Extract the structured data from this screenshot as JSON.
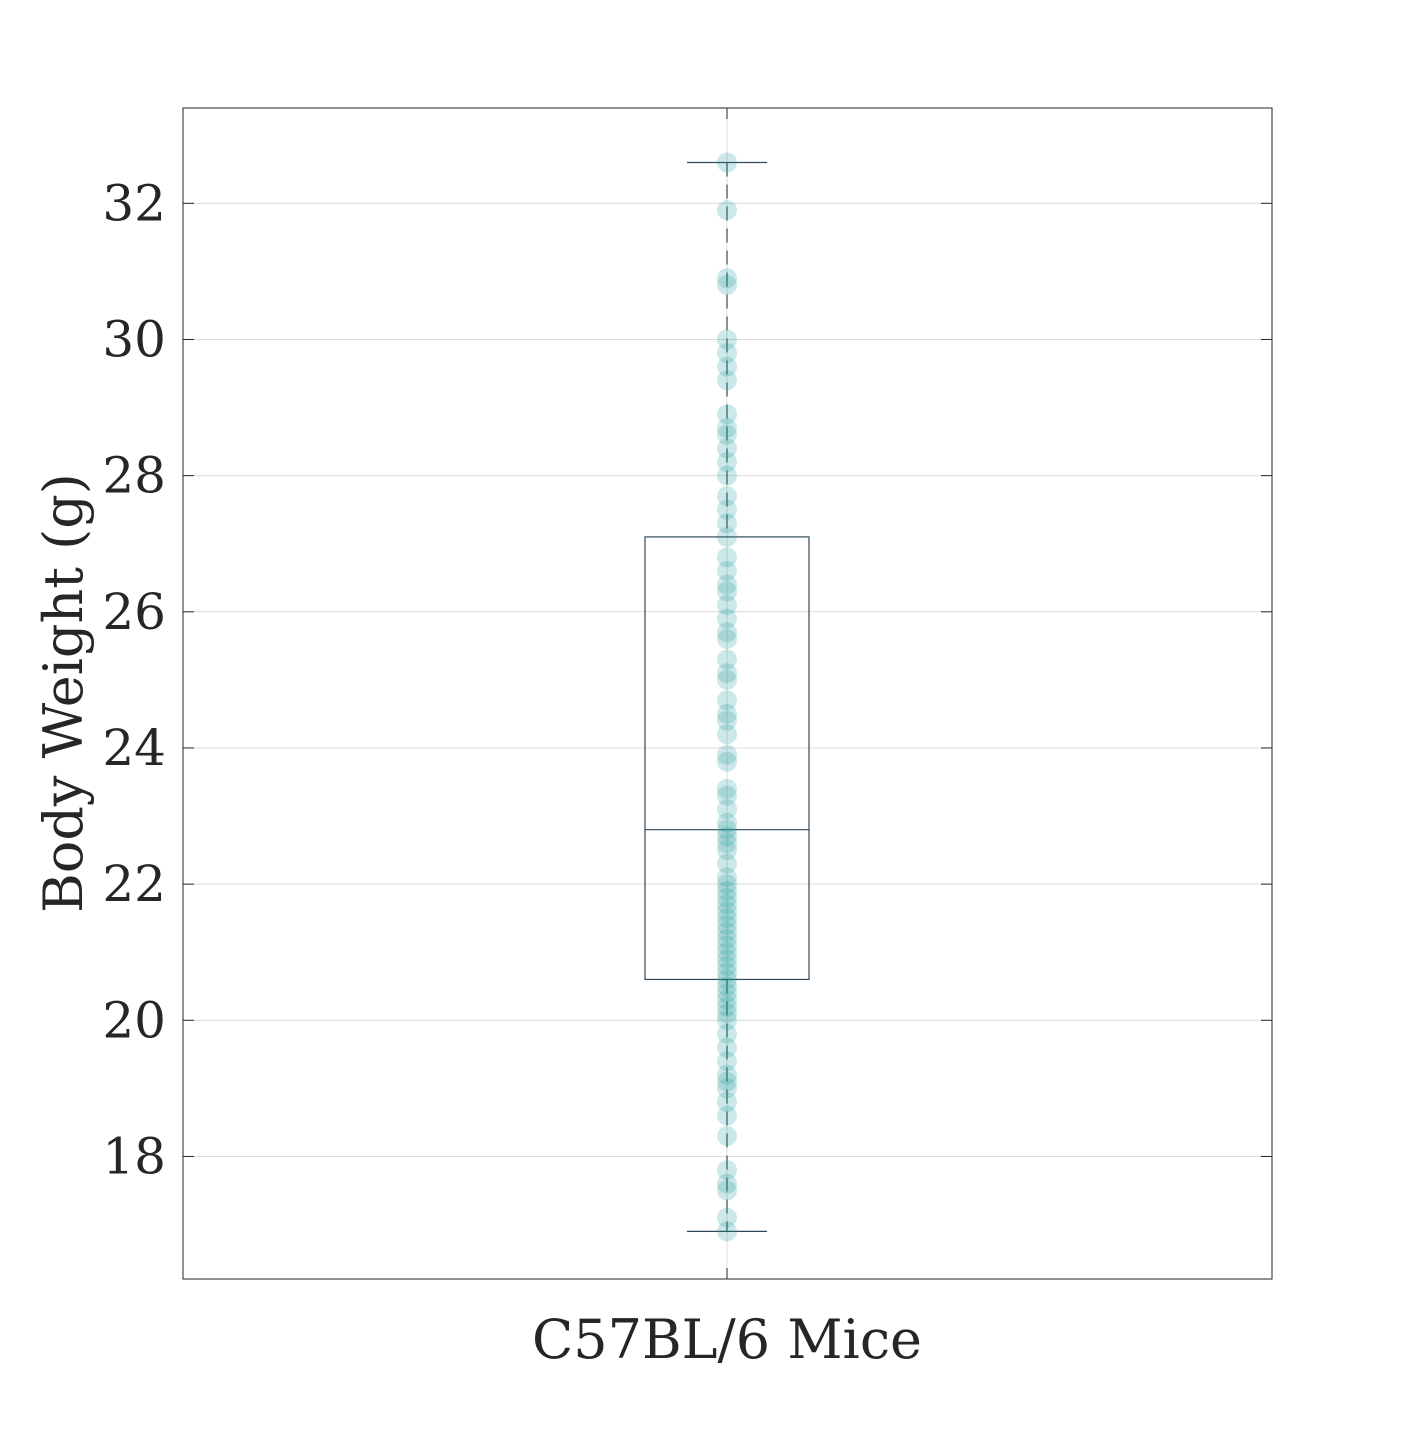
{
  "chart_data": {
    "type": "box",
    "categories": [
      "C57BL/6 Mice"
    ],
    "xlabel": "",
    "ylabel": "Body Weight (g)",
    "ylim": [
      16.2,
      33.4
    ],
    "yticks": [
      18,
      20,
      22,
      24,
      26,
      28,
      30,
      32
    ],
    "grid": true,
    "box": {
      "whisker_low": 16.9,
      "q1": 20.6,
      "median": 22.8,
      "q3": 27.1,
      "whisker_high": 32.6
    },
    "points": [
      16.9,
      17.1,
      17.5,
      17.6,
      17.8,
      18.3,
      18.6,
      18.8,
      19.0,
      19.1,
      19.2,
      19.4,
      19.6,
      19.8,
      20.0,
      20.1,
      20.2,
      20.3,
      20.4,
      20.5,
      20.6,
      20.7,
      20.8,
      20.9,
      21.0,
      21.1,
      21.2,
      21.3,
      21.4,
      21.5,
      21.6,
      21.7,
      21.8,
      21.9,
      22.0,
      22.1,
      22.3,
      22.5,
      22.6,
      22.7,
      22.8,
      22.9,
      23.1,
      23.3,
      23.4,
      23.8,
      23.9,
      24.2,
      24.4,
      24.5,
      24.7,
      25.0,
      25.1,
      25.3,
      25.6,
      25.7,
      25.9,
      26.1,
      26.3,
      26.4,
      26.6,
      26.8,
      27.1,
      27.3,
      27.5,
      27.7,
      28.0,
      28.2,
      28.4,
      28.6,
      28.7,
      28.9,
      29.4,
      29.6,
      29.8,
      30.0,
      30.8,
      30.9,
      31.9,
      32.6
    ],
    "colors": {
      "points": "#1a9696",
      "box": "#2f4a58",
      "grid": "#dcdcdc",
      "axes": "#262626"
    }
  }
}
